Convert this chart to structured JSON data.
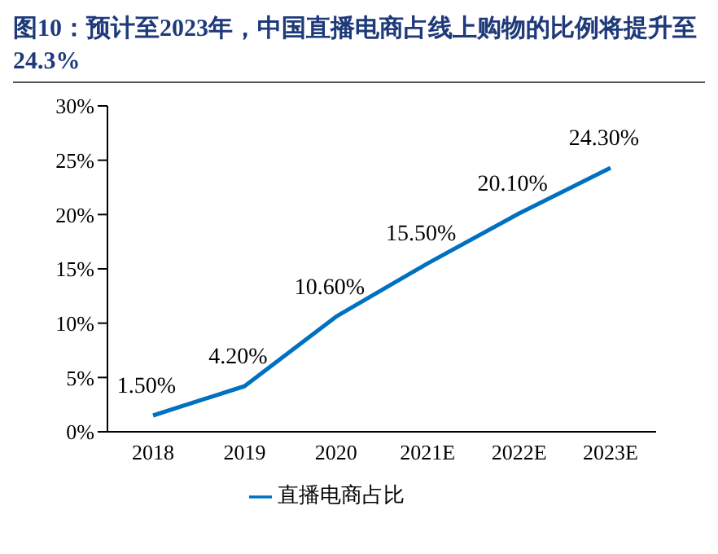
{
  "chart_data": {
    "type": "line",
    "title": "图10：预计至2023年，中国直播电商占线上购物的比例将提升至24.3%",
    "categories": [
      "2018",
      "2019",
      "2020",
      "2021E",
      "2022E",
      "2023E"
    ],
    "series": [
      {
        "name": "直播电商占比",
        "color": "#0070c0",
        "values": [
          1.5,
          4.2,
          10.6,
          15.5,
          20.1,
          24.3
        ],
        "value_labels": [
          "1.50%",
          "4.20%",
          "10.60%",
          "15.50%",
          "20.10%",
          "24.30%"
        ]
      }
    ],
    "ylim": [
      0,
      30
    ],
    "yticks": [
      {
        "value": 0,
        "label": "0%"
      },
      {
        "value": 5,
        "label": "5%"
      },
      {
        "value": 10,
        "label": "10%"
      },
      {
        "value": 15,
        "label": "15%"
      },
      {
        "value": 20,
        "label": "20%"
      },
      {
        "value": 25,
        "label": "25%"
      },
      {
        "value": 30,
        "label": "30%"
      }
    ],
    "grid": false,
    "legend": "bottom",
    "marker": "none",
    "line_style": "solid"
  }
}
